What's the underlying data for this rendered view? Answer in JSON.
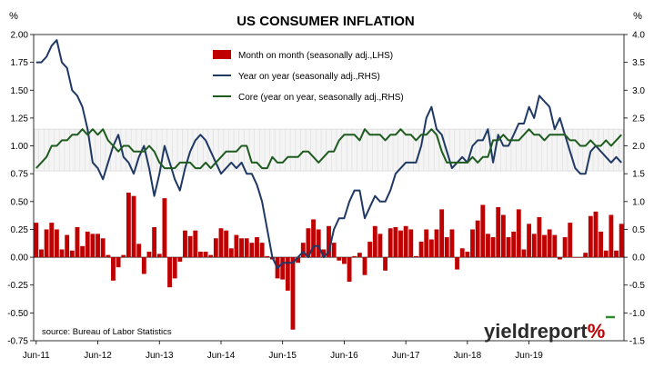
{
  "chart_data": {
    "type": "bar",
    "title": "US CONSUMER INFLATION",
    "left_unit": "%",
    "right_unit": "%",
    "source": "source: Bureau of Labor Statistics",
    "brand": {
      "text_main": "yieldreport",
      "text_symbol": "%",
      "main_color": "#2b2b2b",
      "symbol_color": "#c00000",
      "accent_color": "#2e8b2e"
    },
    "x_tick_labels": [
      "Jun-11",
      "Jun-12",
      "Jun-13",
      "Jun-14",
      "Jun-15",
      "Jun-16",
      "Jun-17",
      "Jun-18",
      "Jun-19"
    ],
    "left_axis": {
      "min": -0.75,
      "max": 2.0,
      "ticks": [
        "2.00",
        "1.75",
        "1.50",
        "1.25",
        "1.00",
        "0.75",
        "0.50",
        "0.25",
        "0.00",
        "-0.25",
        "-0.50",
        "-0.75"
      ]
    },
    "right_axis": {
      "min": -1.5,
      "max": 4.0,
      "ticks": [
        "4.0",
        "3.5",
        "3.0",
        "2.5",
        "2.0",
        "1.5",
        "1.0",
        "0.5",
        "0.0",
        "-0.5",
        "-1.0",
        "-1.5"
      ]
    },
    "shaded_band": {
      "axis": "right",
      "from": 1.55,
      "to": 2.3
    },
    "series": [
      {
        "name": "Month on month (seasonally adj.,LHS)",
        "kind": "bar",
        "axis": "left",
        "color": "#c00000",
        "values": [
          0.31,
          0.07,
          0.25,
          0.31,
          0.25,
          0.07,
          0.2,
          0.06,
          0.27,
          0.1,
          0.23,
          0.21,
          0.21,
          0.17,
          0.02,
          -0.21,
          -0.09,
          0.02,
          0.58,
          0.55,
          0.12,
          -0.15,
          0.05,
          0.27,
          0.03,
          0.53,
          -0.27,
          -0.19,
          -0.04,
          0.24,
          0.19,
          0.24,
          0.05,
          0.05,
          0.02,
          0.17,
          0.26,
          0.24,
          0.08,
          0.2,
          0.17,
          0.17,
          0.13,
          0.18,
          0.13,
          0.01,
          -0.02,
          -0.19,
          -0.2,
          -0.3,
          -0.65,
          -0.05,
          0.13,
          0.26,
          0.34,
          0.25,
          0.07,
          0.28,
          0.13,
          -0.03,
          -0.06,
          -0.22,
          0.01,
          0.04,
          -0.16,
          0.14,
          0.28,
          0.21,
          -0.12,
          0.26,
          0.27,
          0.24,
          0.28,
          0.25,
          0.01,
          0.14,
          0.25,
          0.16,
          0.25,
          0.43,
          0.18,
          0.25,
          -0.11,
          0.08,
          0.05,
          0.25,
          0.33,
          0.47,
          0.21,
          0.18,
          0.45,
          0.38,
          0.18,
          0.23,
          0.43,
          0.07,
          0.3,
          0.21,
          0.36,
          0.2,
          0.25,
          0.2,
          -0.02,
          0.18,
          0.31,
          0.0,
          0.0,
          0.04,
          0.37,
          0.41,
          0.23,
          0.06,
          0.38,
          0.06,
          0.3
        ]
      },
      {
        "name": "Year on year (seasonally adj.,RHS)",
        "kind": "line",
        "axis": "right",
        "color": "#1f3864",
        "values": [
          3.5,
          3.5,
          3.6,
          3.8,
          3.9,
          3.5,
          3.4,
          3.0,
          2.9,
          2.7,
          2.3,
          1.7,
          1.6,
          1.4,
          1.7,
          2.0,
          2.2,
          1.8,
          1.7,
          1.5,
          1.8,
          2.0,
          1.6,
          1.1,
          1.5,
          2.0,
          1.7,
          1.4,
          1.2,
          1.6,
          1.9,
          2.1,
          2.2,
          2.1,
          1.9,
          1.7,
          1.5,
          1.6,
          1.7,
          1.6,
          1.7,
          1.5,
          1.5,
          1.3,
          1.0,
          0.5,
          0.0,
          -0.2,
          -0.1,
          -0.1,
          -0.1,
          0.0,
          0.1,
          0.0,
          0.2,
          0.2,
          0.0,
          0.1,
          0.5,
          0.7,
          0.7,
          1.0,
          1.2,
          1.2,
          0.7,
          0.9,
          1.1,
          1.0,
          1.0,
          1.2,
          1.5,
          1.6,
          1.7,
          1.7,
          1.7,
          2.0,
          2.5,
          2.7,
          2.3,
          2.2,
          1.9,
          1.6,
          1.7,
          1.8,
          1.7,
          2.0,
          2.1,
          2.1,
          2.3,
          1.7,
          2.2,
          2.0,
          2.0,
          2.2,
          2.4,
          2.4,
          2.7,
          2.5,
          2.9,
          2.8,
          2.7,
          2.3,
          2.5,
          2.2,
          1.9,
          1.6,
          1.5,
          1.5,
          1.9,
          2.0,
          1.9,
          1.8,
          1.7,
          1.8,
          1.7
        ]
      },
      {
        "name": "Core (year on year, seasonally adj.,RHS)",
        "kind": "line",
        "axis": "right",
        "color": "#1e5b1e",
        "values": [
          1.6,
          1.7,
          1.8,
          2.0,
          2.0,
          2.1,
          2.1,
          2.2,
          2.2,
          2.3,
          2.2,
          2.3,
          2.2,
          2.3,
          2.1,
          2.0,
          1.9,
          2.0,
          2.0,
          1.9,
          1.9,
          1.9,
          2.0,
          1.9,
          1.7,
          1.6,
          1.6,
          1.6,
          1.7,
          1.7,
          1.7,
          1.6,
          1.6,
          1.7,
          1.6,
          1.7,
          1.8,
          1.9,
          1.9,
          1.9,
          2.0,
          2.0,
          1.7,
          1.7,
          1.6,
          1.6,
          1.8,
          1.7,
          1.7,
          1.8,
          1.8,
          1.8,
          1.9,
          1.9,
          1.8,
          1.7,
          1.8,
          1.9,
          1.9,
          2.1,
          2.2,
          2.2,
          2.2,
          2.1,
          2.3,
          2.2,
          2.2,
          2.2,
          2.1,
          2.2,
          2.2,
          2.3,
          2.2,
          2.2,
          2.1,
          2.2,
          2.2,
          2.3,
          2.2,
          1.9,
          1.7,
          1.7,
          1.7,
          1.7,
          1.7,
          1.8,
          1.7,
          1.8,
          1.8,
          2.1,
          2.1,
          2.2,
          2.1,
          2.1,
          2.1,
          2.2,
          2.3,
          2.2,
          2.2,
          2.1,
          2.2,
          2.2,
          2.2,
          2.2,
          2.1,
          2.1,
          2.0,
          2.0,
          2.1,
          2.0,
          2.0,
          2.1,
          2.0,
          2.1,
          2.2
        ]
      }
    ]
  }
}
